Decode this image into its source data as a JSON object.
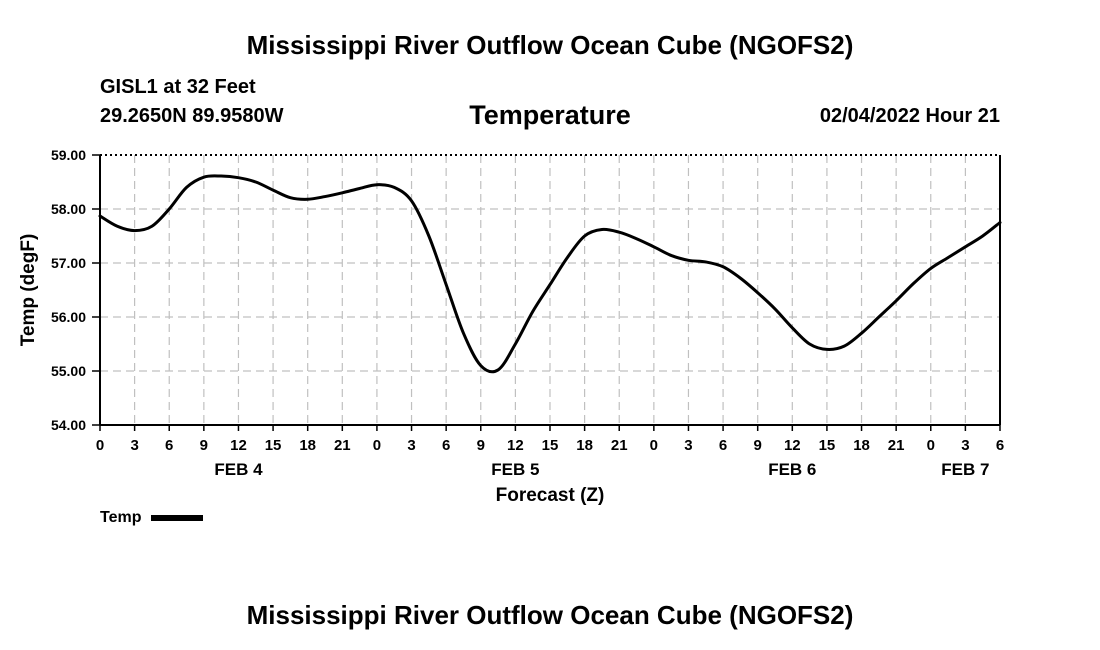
{
  "header": {
    "title": "Mississippi River Outflow Ocean Cube (NGOFS2)",
    "station": "GISL1 at 32 Feet",
    "coords": "29.2650N  89.9580W",
    "chart_title": "Temperature",
    "datetime": "02/04/2022 Hour 21"
  },
  "footer": {
    "title": "Mississippi River Outflow Ocean Cube (NGOFS2)"
  },
  "colors": {
    "line": "#000000",
    "grid": "#c0c0c0",
    "background": "#ffffff"
  },
  "chart_data": {
    "type": "line",
    "title": "Temperature",
    "xlabel": "Forecast (Z)",
    "ylabel": "Temp (degF)",
    "x_unit": "forecast hours from FEB 4 00Z",
    "xlim": [
      0,
      78
    ],
    "ylim": [
      54.0,
      59.0
    ],
    "x_ticks": [
      0,
      3,
      6,
      9,
      12,
      15,
      18,
      21,
      24,
      27,
      30,
      33,
      36,
      39,
      42,
      45,
      48,
      51,
      54,
      57,
      60,
      63,
      66,
      69,
      72,
      75,
      78
    ],
    "x_tick_labels": [
      "0",
      "3",
      "6",
      "9",
      "12",
      "15",
      "18",
      "21",
      "0",
      "3",
      "6",
      "9",
      "12",
      "15",
      "18",
      "21",
      "0",
      "3",
      "6",
      "9",
      "12",
      "15",
      "18",
      "21",
      "0",
      "3",
      "6"
    ],
    "y_ticks": [
      54.0,
      55.0,
      56.0,
      57.0,
      58.0,
      59.0
    ],
    "y_tick_labels": [
      "54.00",
      "55.00",
      "56.00",
      "57.00",
      "58.00",
      "59.00"
    ],
    "date_labels": [
      {
        "label": "FEB 4",
        "x": 12
      },
      {
        "label": "FEB 5",
        "x": 36
      },
      {
        "label": "FEB 6",
        "x": 60
      },
      {
        "label": "FEB 7",
        "x": 75
      }
    ],
    "grid": true,
    "legend": {
      "position": "bottom-left",
      "entries": [
        "Temp"
      ]
    },
    "series": [
      {
        "name": "Temp",
        "x": [
          0,
          1.5,
          3,
          4.5,
          6,
          7.5,
          9,
          10.5,
          12,
          13.5,
          15,
          16.5,
          18,
          19.5,
          21,
          22.5,
          24,
          25.5,
          27,
          28.5,
          30,
          31.5,
          33,
          34.5,
          36,
          37.5,
          39,
          40.5,
          42,
          43.5,
          45,
          46.5,
          48,
          49.5,
          51,
          52.5,
          54,
          55.5,
          57,
          58.5,
          60,
          61.5,
          63,
          64.5,
          66,
          67.5,
          69,
          70.5,
          72,
          73.5,
          75,
          76.5,
          78
        ],
        "values": [
          57.87,
          57.68,
          57.6,
          57.68,
          58.0,
          58.4,
          58.59,
          58.61,
          58.58,
          58.5,
          58.35,
          58.21,
          58.18,
          58.23,
          58.3,
          58.38,
          58.45,
          58.4,
          58.15,
          57.5,
          56.6,
          55.7,
          55.1,
          55.02,
          55.5,
          56.1,
          56.6,
          57.1,
          57.5,
          57.62,
          57.57,
          57.45,
          57.3,
          57.14,
          57.05,
          57.02,
          56.93,
          56.72,
          56.45,
          56.15,
          55.8,
          55.5,
          55.4,
          55.46,
          55.7,
          56.0,
          56.3,
          56.62,
          56.9,
          57.1,
          57.3,
          57.5,
          57.75
        ]
      }
    ]
  }
}
